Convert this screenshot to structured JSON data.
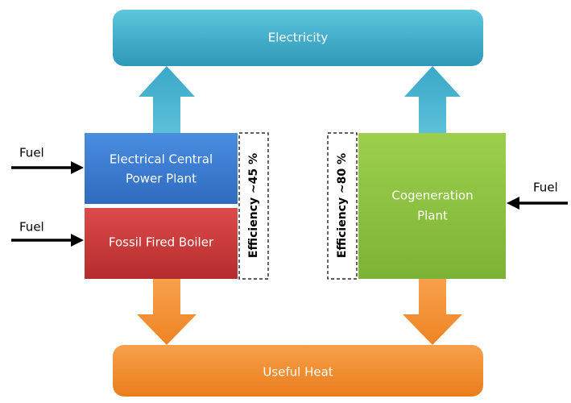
{
  "nodes": [
    {
      "label": "Electricity"
    },
    {
      "label": "Useful Heat"
    },
    {
      "label_lines": [
        "Electrical Central",
        "Power Plant"
      ]
    },
    {
      "label": "Fossil Fired Boiler"
    },
    {
      "label_lines": [
        "Cogeneration",
        "Plant"
      ]
    }
  ],
  "efficiencies": [
    "Efficiency ~45 %",
    "Efficiency ~80 %"
  ],
  "inputs": [
    "Fuel",
    "Fuel",
    "Fuel"
  ]
}
